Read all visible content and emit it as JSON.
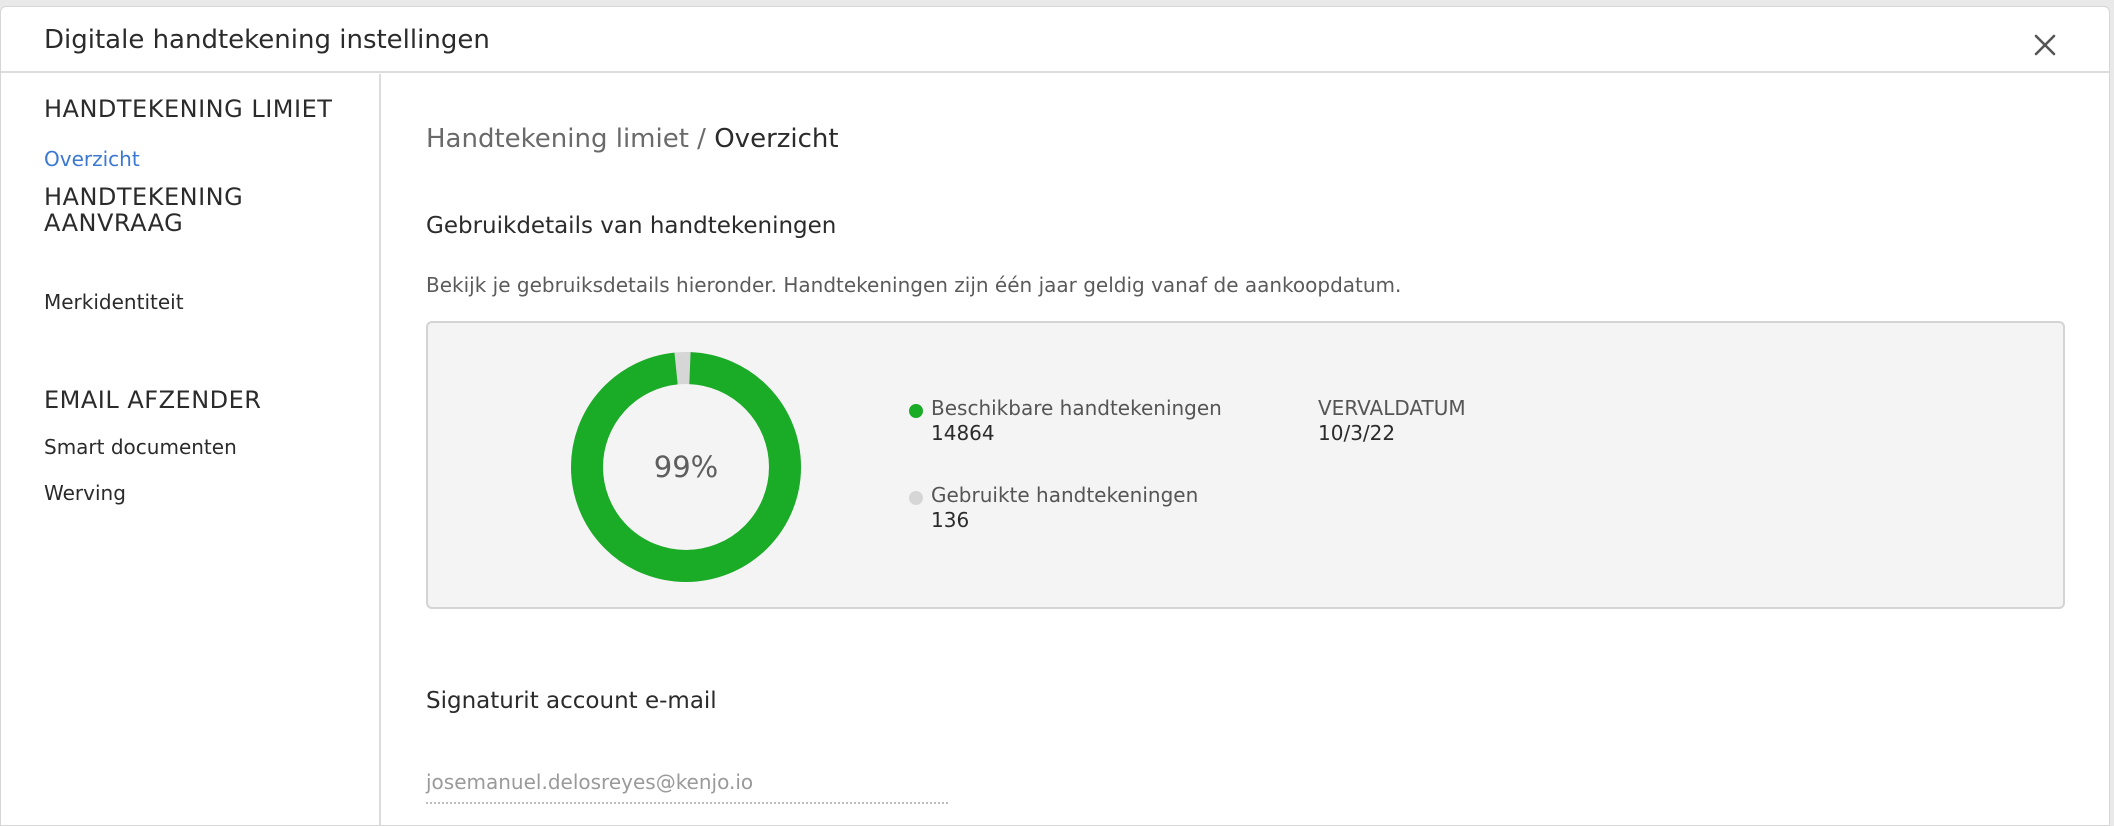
{
  "dialog": {
    "title": "Digitale handtekening instellingen",
    "close_icon": "close-icon"
  },
  "sidebar": {
    "sections": [
      {
        "heading": "HANDTEKENING LIMIET",
        "items": [
          {
            "label": "Overzicht",
            "active": true
          }
        ]
      },
      {
        "heading": "HANDTEKENING AANVRAAG",
        "items": [
          {
            "label": "Merkidentiteit",
            "active": false
          }
        ]
      },
      {
        "heading": "EMAIL AFZENDER",
        "items": [
          {
            "label": "Smart documenten",
            "active": false
          },
          {
            "label": "Werving",
            "active": false
          }
        ]
      }
    ]
  },
  "main": {
    "breadcrumb": {
      "parent": "Handtekening limiet / ",
      "current": "Overzicht"
    },
    "usage": {
      "title": "Gebruikdetails van handtekeningen",
      "description": "Bekijk je gebruiksdetails hieronder. Handtekeningen zijn één jaar geldig vanaf de aankoopdatum.",
      "percent_label": "99%",
      "available_fraction": 0.99,
      "legend": [
        {
          "label": "Beschikbare handtekeningen",
          "value": "14864",
          "color": "#1aab27"
        },
        {
          "label": "Gebruikte handtekeningen",
          "value": "136",
          "color": "#d6d6d6"
        }
      ],
      "expiry": {
        "label": "VERVALDATUM",
        "value": "10/3/22"
      }
    },
    "account": {
      "title": "Signaturit account e-mail",
      "email": "josemanuel.delosreyes@kenjo.io"
    }
  },
  "colors": {
    "accent": "#3a78d1",
    "available": "#1aab27",
    "used": "#d6d6d6"
  }
}
